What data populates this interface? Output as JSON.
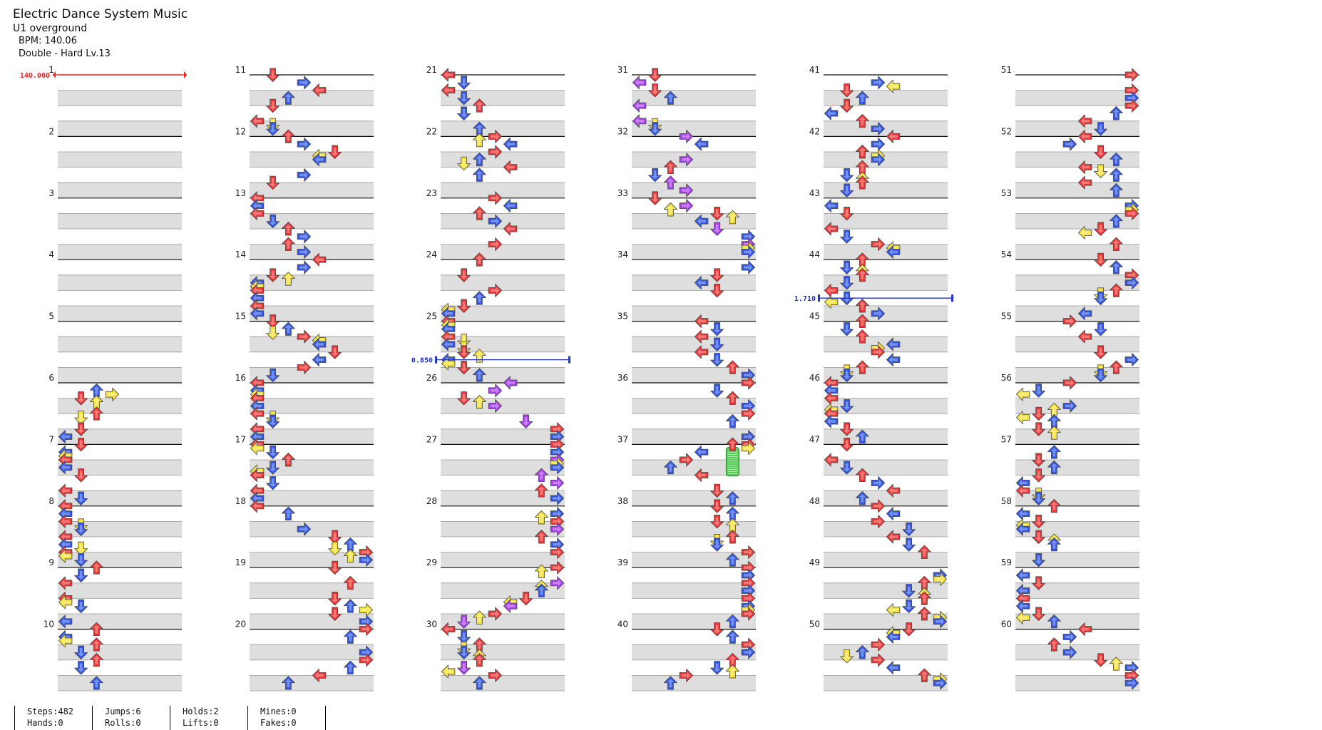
{
  "song": {
    "title": "Electric Dance System Music",
    "artist": "U1 overground",
    "bpm_text": "BPM: 140.06",
    "difficulty_text": "Double - Hard Lv.13"
  },
  "chart": {
    "measures_per_column": 10,
    "columns": 6,
    "total_measures": 60,
    "measure_numbers": [
      "1",
      "2",
      "3",
      "4",
      "5",
      "6",
      "7",
      "8",
      "9",
      "10",
      "11",
      "12",
      "13",
      "14",
      "15",
      "16",
      "17",
      "18",
      "19",
      "20",
      "21",
      "22",
      "23",
      "24",
      "25",
      "26",
      "27",
      "28",
      "29",
      "30",
      "31",
      "32",
      "33",
      "34",
      "35",
      "36",
      "37",
      "38",
      "39",
      "40",
      "41",
      "42",
      "43",
      "44",
      "45",
      "46",
      "47",
      "48",
      "49",
      "50",
      "51",
      "52",
      "53",
      "54",
      "55",
      "56",
      "57",
      "58",
      "59",
      "60"
    ],
    "tempo_changes": [
      {
        "measure": 1,
        "beat": 0,
        "label": "140.060",
        "color": "#ee2222",
        "kind": "bpm"
      },
      {
        "measure": 25,
        "beat": 2.5,
        "label": "0.850",
        "color": "#2233cc",
        "kind": "stop"
      },
      {
        "measure": 44,
        "beat": 2.5,
        "label": "1.710",
        "color": "#2233cc",
        "kind": "stop"
      }
    ],
    "hold": {
      "measure": 37,
      "beat": 0,
      "length": 1.5,
      "lane": 6,
      "color": "#55cc55"
    },
    "colors": {
      "quarter": "#ee3333",
      "eighth": "#2f55e6",
      "sixteenth": "#f5e23a",
      "twelfth": "#a93cf0",
      "outline": "#555555"
    },
    "lane_icons": [
      "left-arrow-icon",
      "down-arrow-icon",
      "up-arrow-icon",
      "right-arrow-icon",
      "left-arrow-icon",
      "down-arrow-icon",
      "up-arrow-icon",
      "right-arrow-icon"
    ]
  },
  "stats": {
    "steps": "Steps:482",
    "jumps": "Jumps:6",
    "holds": "Holds:2",
    "mines": "Mines:0",
    "hands": "Hands:0",
    "rolls": "Rolls:0",
    "lifts": "Lifts:0",
    "fakes": "Fakes:0"
  }
}
